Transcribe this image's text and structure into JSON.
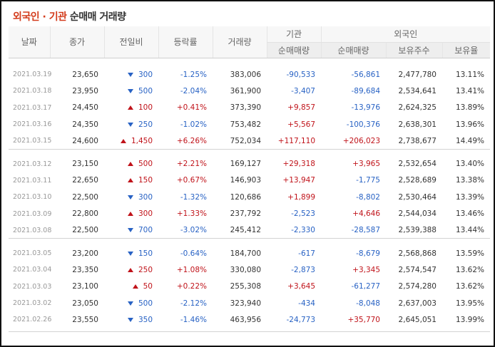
{
  "title": {
    "highlight": "외국인 · 기관",
    "rest": " 순매매 거래량"
  },
  "headers": {
    "date": "날짜",
    "close": "종가",
    "change": "전일비",
    "rate": "등락률",
    "volume": "거래량",
    "institution": "기관",
    "inst_net": "순매매량",
    "foreign": "외국인",
    "frgn_net": "순매매량",
    "frgn_shares": "보유주수",
    "frgn_ratio": "보유율"
  },
  "colors": {
    "up": "#c0131a",
    "down": "#2862c4",
    "accent": "#d33a1a"
  },
  "groups": [
    [
      {
        "date": "2021.03.19",
        "close": "23,650",
        "dir": "down",
        "change": "300",
        "rate": "-1.25%",
        "volume": "383,006",
        "inst": "-90,533",
        "frgn": "-56,861",
        "shares": "2,477,780",
        "ratio": "13.11%"
      },
      {
        "date": "2021.03.18",
        "close": "23,950",
        "dir": "down",
        "change": "500",
        "rate": "-2.04%",
        "volume": "361,900",
        "inst": "-3,407",
        "frgn": "-89,684",
        "shares": "2,534,641",
        "ratio": "13.41%"
      },
      {
        "date": "2021.03.17",
        "close": "24,450",
        "dir": "up",
        "change": "100",
        "rate": "+0.41%",
        "volume": "373,390",
        "inst": "+9,857",
        "frgn": "-13,976",
        "shares": "2,624,325",
        "ratio": "13.89%"
      },
      {
        "date": "2021.03.16",
        "close": "24,350",
        "dir": "down",
        "change": "250",
        "rate": "-1.02%",
        "volume": "753,482",
        "inst": "+5,567",
        "frgn": "-100,376",
        "shares": "2,638,301",
        "ratio": "13.96%"
      },
      {
        "date": "2021.03.15",
        "close": "24,600",
        "dir": "up",
        "change": "1,450",
        "rate": "+6.26%",
        "volume": "752,034",
        "inst": "+117,110",
        "frgn": "+206,023",
        "shares": "2,738,677",
        "ratio": "14.49%"
      }
    ],
    [
      {
        "date": "2021.03.12",
        "close": "23,150",
        "dir": "up",
        "change": "500",
        "rate": "+2.21%",
        "volume": "169,127",
        "inst": "+29,318",
        "frgn": "+3,965",
        "shares": "2,532,654",
        "ratio": "13.40%"
      },
      {
        "date": "2021.03.11",
        "close": "22,650",
        "dir": "up",
        "change": "150",
        "rate": "+0.67%",
        "volume": "146,903",
        "inst": "+13,947",
        "frgn": "-1,775",
        "shares": "2,528,689",
        "ratio": "13.38%"
      },
      {
        "date": "2021.03.10",
        "close": "22,500",
        "dir": "down",
        "change": "300",
        "rate": "-1.32%",
        "volume": "120,686",
        "inst": "+1,899",
        "frgn": "-8,802",
        "shares": "2,530,464",
        "ratio": "13.39%"
      },
      {
        "date": "2021.03.09",
        "close": "22,800",
        "dir": "up",
        "change": "300",
        "rate": "+1.33%",
        "volume": "237,792",
        "inst": "-2,523",
        "frgn": "+4,646",
        "shares": "2,544,034",
        "ratio": "13.46%"
      },
      {
        "date": "2021.03.08",
        "close": "22,500",
        "dir": "down",
        "change": "700",
        "rate": "-3.02%",
        "volume": "245,412",
        "inst": "-2,330",
        "frgn": "-28,587",
        "shares": "2,539,388",
        "ratio": "13.44%"
      }
    ],
    [
      {
        "date": "2021.03.05",
        "close": "23,200",
        "dir": "down",
        "change": "150",
        "rate": "-0.64%",
        "volume": "184,700",
        "inst": "-617",
        "frgn": "-8,679",
        "shares": "2,568,868",
        "ratio": "13.59%"
      },
      {
        "date": "2021.03.04",
        "close": "23,350",
        "dir": "up",
        "change": "250",
        "rate": "+1.08%",
        "volume": "330,080",
        "inst": "-2,873",
        "frgn": "+3,345",
        "shares": "2,574,547",
        "ratio": "13.62%"
      },
      {
        "date": "2021.03.03",
        "close": "23,100",
        "dir": "up",
        "change": "50",
        "rate": "+0.22%",
        "volume": "255,308",
        "inst": "+3,645",
        "frgn": "-61,277",
        "shares": "2,574,280",
        "ratio": "13.62%"
      },
      {
        "date": "2021.03.02",
        "close": "23,050",
        "dir": "down",
        "change": "500",
        "rate": "-2.12%",
        "volume": "323,940",
        "inst": "-434",
        "frgn": "-8,048",
        "shares": "2,637,003",
        "ratio": "13.95%"
      },
      {
        "date": "2021.02.26",
        "close": "23,550",
        "dir": "down",
        "change": "350",
        "rate": "-1.46%",
        "volume": "463,956",
        "inst": "-24,773",
        "frgn": "+35,770",
        "shares": "2,645,051",
        "ratio": "13.99%"
      }
    ]
  ]
}
